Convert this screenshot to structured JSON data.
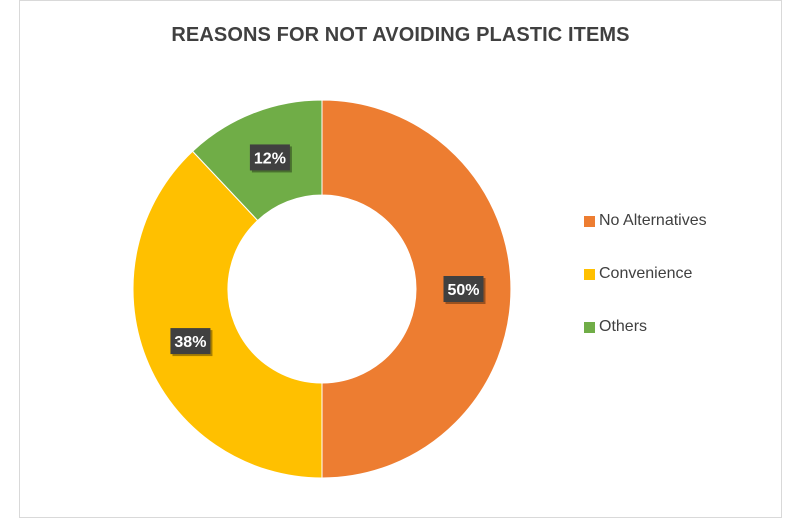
{
  "chart_data": {
    "type": "pie",
    "variant": "doughnut",
    "title": "REASONS FOR NOT AVOIDING PLASTIC ITEMS",
    "categories": [
      "No Alternatives",
      "Convenience",
      "Others"
    ],
    "values": [
      50,
      38,
      12
    ],
    "data_labels": [
      "50%",
      "38%",
      "12%"
    ],
    "colors": [
      "#ED7D31",
      "#FFC000",
      "#70AD47"
    ],
    "legend_position": "right",
    "label_box_color": "#404040",
    "label_text_color": "#ffffff"
  }
}
